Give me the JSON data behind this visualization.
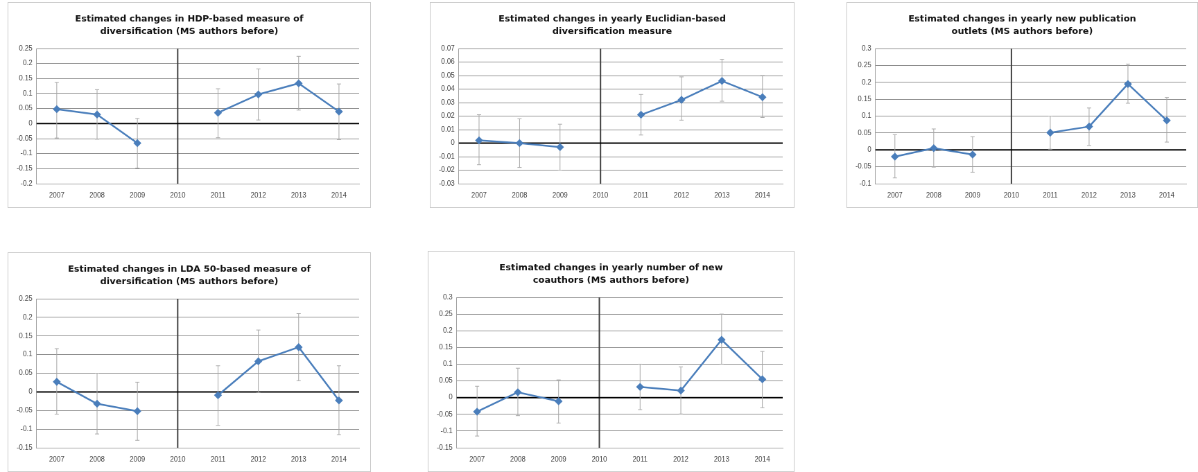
{
  "chart_data": [
    {
      "type": "line",
      "title": "Estimated changes in HDP-based measure of diversification (MS authors before)",
      "categories": [
        "2007",
        "2008",
        "2009",
        "2010",
        "2011",
        "2012",
        "2013",
        "2014"
      ],
      "values": [
        0.048,
        0.03,
        -0.065,
        null,
        0.036,
        0.097,
        0.134,
        0.04
      ],
      "errors": [
        [
          -0.048,
          0.137
        ],
        [
          -0.052,
          0.113
        ],
        [
          -0.148,
          0.017
        ],
        null,
        [
          -0.047,
          0.116
        ],
        [
          0.012,
          0.182
        ],
        [
          0.045,
          0.224
        ],
        [
          -0.053,
          0.132
        ]
      ],
      "color": "#4a7ebb",
      "ylim": [
        -0.2,
        0.25
      ],
      "yticks": [
        -0.2,
        -0.15,
        -0.1,
        -0.05,
        0,
        0.05,
        0.1,
        0.15,
        0.2,
        0.25
      ],
      "grid": "y",
      "legend": false,
      "marker": "diamond",
      "ref_lines": [
        {
          "axis": "x",
          "value": "2010",
          "color": "#404040"
        },
        {
          "axis": "y",
          "value": 0,
          "color": "#000000"
        }
      ]
    },
    {
      "type": "line",
      "title": "Estimated changes in yearly Euclidian-based diversification measure",
      "categories": [
        "2007",
        "2008",
        "2009",
        "2010",
        "2011",
        "2012",
        "2013",
        "2014"
      ],
      "values": [
        0.002,
        0,
        -0.003,
        null,
        0.021,
        0.032,
        0.046,
        0.034
      ],
      "errors": [
        [
          -0.016,
          0.021
        ],
        [
          -0.018,
          0.018
        ],
        [
          -0.02,
          0.014
        ],
        null,
        [
          0.006,
          0.036
        ],
        [
          0.017,
          0.049
        ],
        [
          0.031,
          0.062
        ],
        [
          0.019,
          0.05
        ]
      ],
      "color": "#4a7ebb",
      "ylim": [
        -0.03,
        0.07
      ],
      "yticks": [
        -0.03,
        -0.02,
        -0.01,
        0,
        0.01,
        0.02,
        0.03,
        0.04,
        0.05,
        0.06,
        0.07
      ],
      "grid": "y",
      "legend": false,
      "marker": "diamond",
      "ref_lines": [
        {
          "axis": "x",
          "value": "2010",
          "color": "#404040"
        },
        {
          "axis": "y",
          "value": 0,
          "color": "#000000"
        }
      ]
    },
    {
      "type": "line",
      "title": "Estimated changes in yearly new publication outlets (MS authors before)",
      "categories": [
        "2007",
        "2008",
        "2009",
        "2010",
        "2011",
        "2012",
        "2013",
        "2014"
      ],
      "values": [
        -0.02,
        0.005,
        -0.014,
        null,
        0.051,
        0.069,
        0.195,
        0.087
      ],
      "errors": [
        [
          -0.083,
          0.045
        ],
        [
          -0.051,
          0.062
        ],
        [
          -0.066,
          0.039
        ],
        null,
        [
          0.002,
          0.1
        ],
        [
          0.013,
          0.124
        ],
        [
          0.138,
          0.254
        ],
        [
          0.023,
          0.155
        ]
      ],
      "color": "#4a7ebb",
      "ylim": [
        -0.1,
        0.3
      ],
      "yticks": [
        -0.1,
        -0.05,
        0,
        0.05,
        0.1,
        0.15,
        0.2,
        0.25,
        0.3
      ],
      "grid": "y",
      "legend": false,
      "marker": "diamond",
      "ref_lines": [
        {
          "axis": "x",
          "value": "2010",
          "color": "#404040"
        },
        {
          "axis": "y",
          "value": 0,
          "color": "#000000"
        }
      ]
    },
    {
      "type": "line",
      "title": "Estimated changes in LDA 50-based measure of diversification (MS authors before)",
      "categories": [
        "2007",
        "2008",
        "2009",
        "2010",
        "2011",
        "2012",
        "2013",
        "2014"
      ],
      "values": [
        0.027,
        -0.032,
        -0.052,
        null,
        -0.009,
        0.082,
        0.12,
        -0.023
      ],
      "errors": [
        [
          -0.06,
          0.116
        ],
        [
          -0.113,
          0.05
        ],
        [
          -0.13,
          0.026
        ],
        null,
        [
          -0.09,
          0.07
        ],
        [
          -0.002,
          0.166
        ],
        [
          0.03,
          0.21
        ],
        [
          -0.115,
          0.07
        ]
      ],
      "color": "#4a7ebb",
      "ylim": [
        -0.15,
        0.25
      ],
      "yticks": [
        -0.15,
        -0.1,
        -0.05,
        0,
        0.05,
        0.1,
        0.15,
        0.2,
        0.25
      ],
      "grid": "y",
      "legend": false,
      "marker": "diamond",
      "ref_lines": [
        {
          "axis": "x",
          "value": "2010",
          "color": "#404040"
        },
        {
          "axis": "y",
          "value": 0,
          "color": "#000000"
        }
      ]
    },
    {
      "type": "line",
      "title": "Estimated changes in yearly number of new coauthors (MS authors before)",
      "categories": [
        "2007",
        "2008",
        "2009",
        "2010",
        "2011",
        "2012",
        "2013",
        "2014"
      ],
      "values": [
        -0.042,
        0.016,
        -0.011,
        null,
        0.032,
        0.021,
        0.173,
        0.055
      ],
      "errors": [
        [
          -0.115,
          0.034
        ],
        [
          -0.054,
          0.088
        ],
        [
          -0.076,
          0.053
        ],
        null,
        [
          -0.036,
          0.1
        ],
        [
          -0.049,
          0.092
        ],
        [
          0.1,
          0.25
        ],
        [
          -0.03,
          0.138
        ]
      ],
      "color": "#4a7ebb",
      "ylim": [
        -0.15,
        0.3
      ],
      "yticks": [
        -0.15,
        -0.1,
        -0.05,
        0,
        0.05,
        0.1,
        0.15,
        0.2,
        0.25,
        0.3
      ],
      "grid": "y",
      "legend": false,
      "marker": "diamond",
      "ref_lines": [
        {
          "axis": "x",
          "value": "2010",
          "color": "#404040"
        },
        {
          "axis": "y",
          "value": 0,
          "color": "#000000"
        }
      ]
    }
  ]
}
